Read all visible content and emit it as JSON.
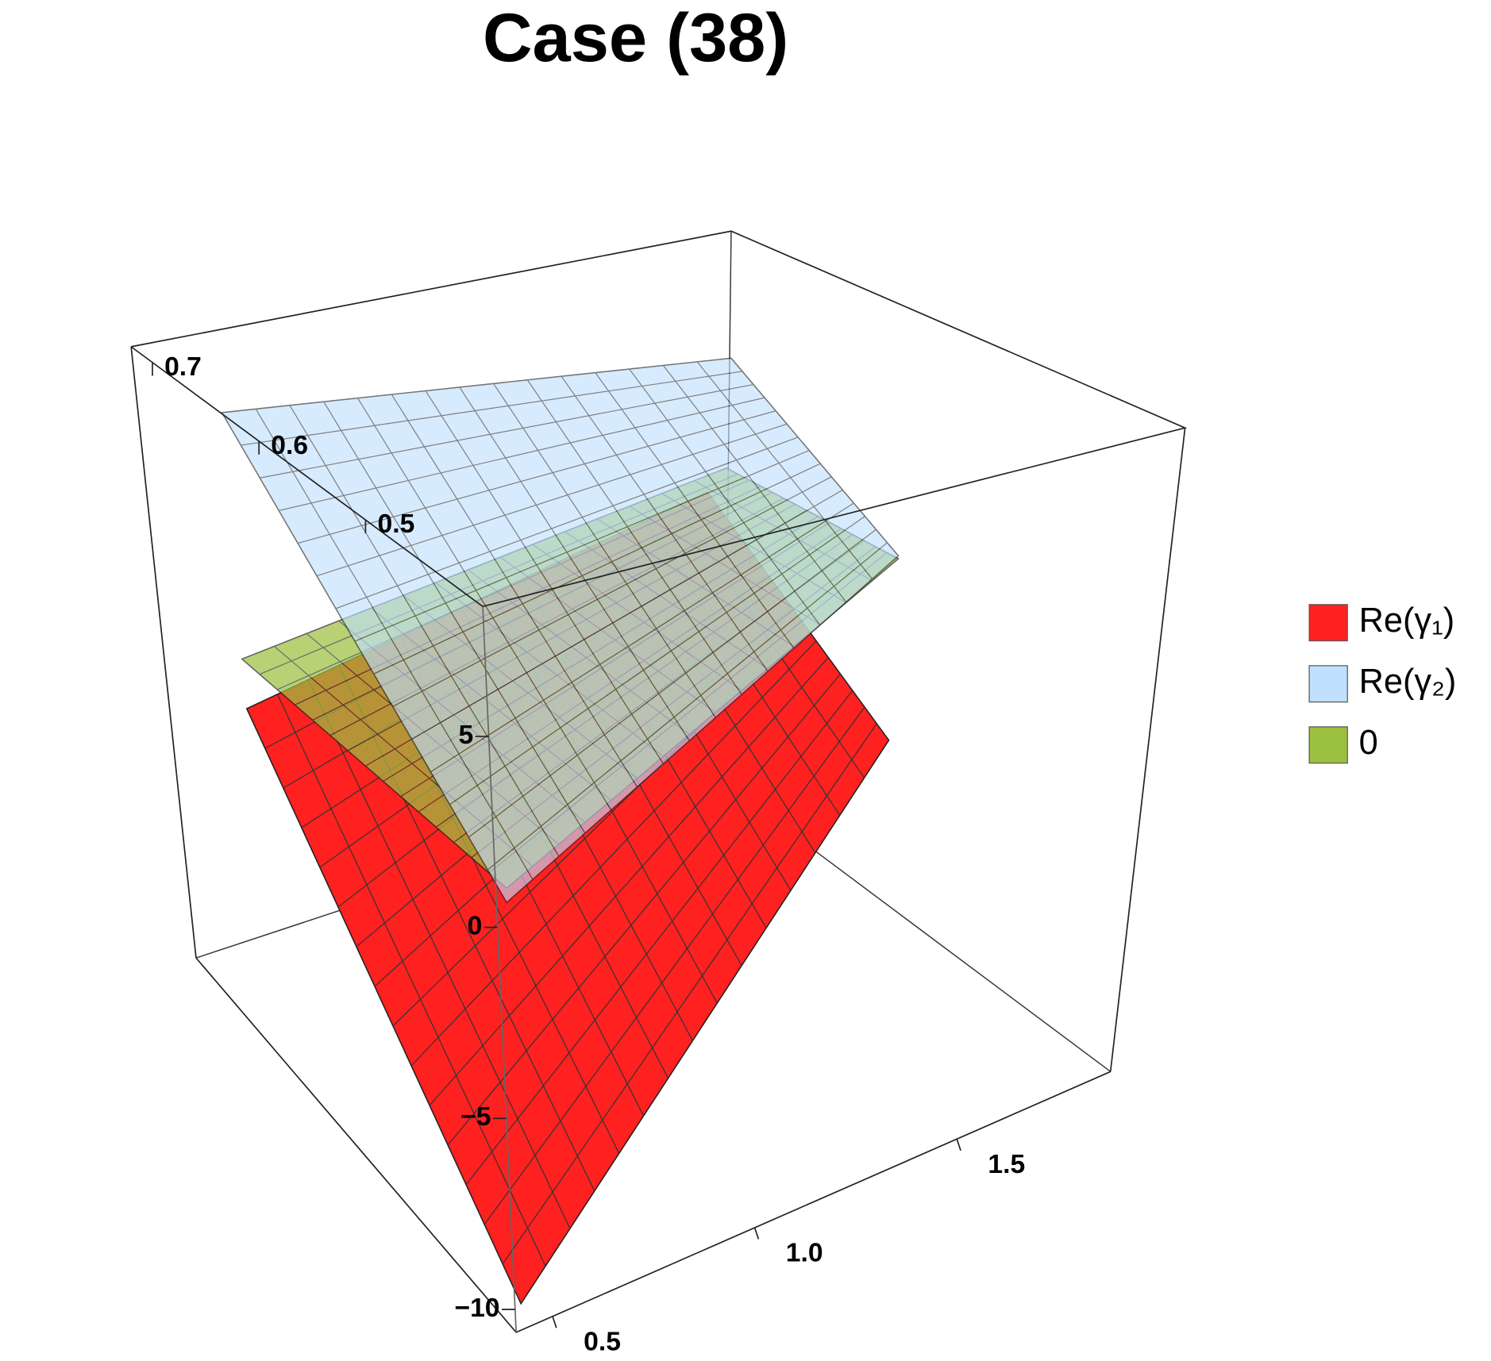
{
  "chart_data": {
    "type": "surface3d",
    "title": "Case (38)",
    "series": [
      {
        "name": "Re(γ₁)",
        "color": "#ff2020"
      },
      {
        "name": "Re(γ₂)",
        "color": "#bfe0ff"
      },
      {
        "name": "0",
        "color": "#9cc040"
      }
    ],
    "xlim": [
      0.41,
      1.88
    ],
    "xticks": [
      0.5,
      {
        "value": 1,
        "label": "1.0"
      },
      1.5
    ],
    "ylim": [
      0.39,
      0.72
    ],
    "yticks": [
      0.5,
      0.6,
      0.7
    ],
    "zlim": [
      -10.6,
      8.4
    ],
    "zticks": [
      {
        "value": -10,
        "label": "−10"
      },
      {
        "value": -5,
        "label": "−5"
      },
      0,
      5
    ]
  }
}
